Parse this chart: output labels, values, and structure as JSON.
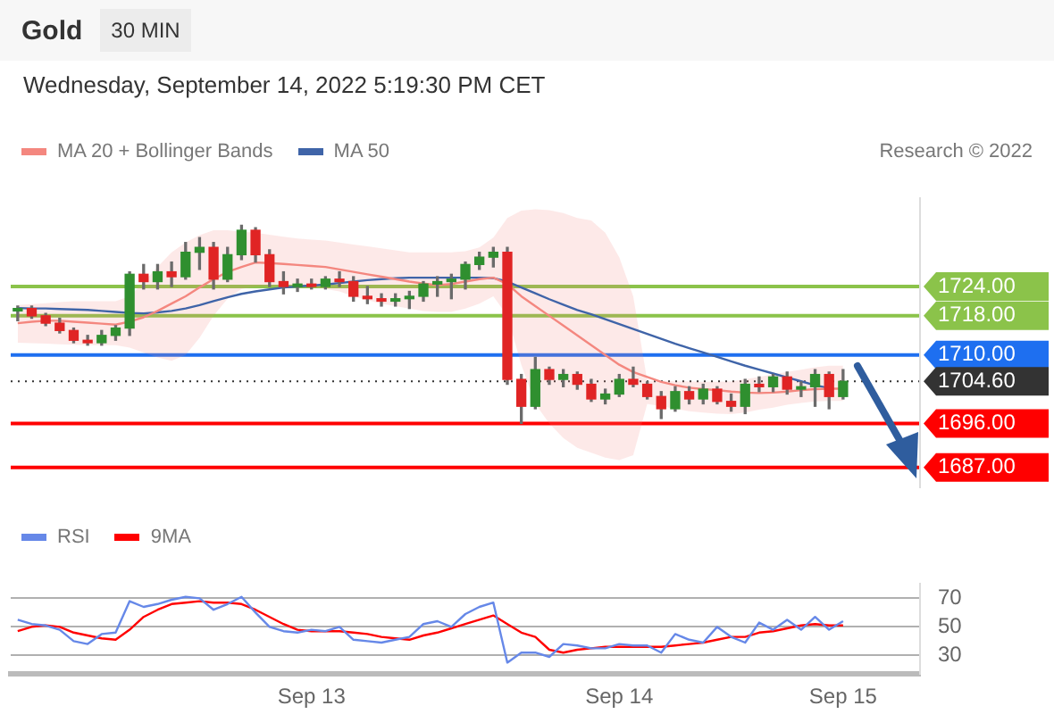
{
  "chart_data": [
    {
      "type": "candlestick",
      "title": "Gold",
      "subtitle": "Wednesday, September 14, 2022 5:19:30 PM CET",
      "annotations": [
        "30 MIN",
        "Research © 2022"
      ],
      "categories": [
        null,
        null,
        null,
        null,
        null,
        null,
        null,
        null,
        null,
        null,
        null,
        null,
        null,
        null,
        null,
        null,
        null,
        null,
        null,
        null,
        null,
        null,
        null,
        null,
        null,
        null,
        null,
        null,
        null,
        null,
        null,
        null,
        null,
        null,
        null,
        null,
        null,
        null,
        null,
        null,
        null,
        null,
        null,
        null,
        null,
        null,
        null,
        null,
        null,
        null,
        null,
        null,
        null,
        null,
        null,
        null,
        null,
        null,
        null,
        null,
        null,
        null,
        null,
        null,
        null
      ],
      "ohlc": [
        [
          1719,
          1720,
          1717,
          1719.5
        ],
        [
          1719.5,
          1720,
          1717.5,
          1718
        ],
        [
          1718,
          1718.5,
          1716,
          1716.5
        ],
        [
          1716.5,
          1717.5,
          1714.5,
          1715
        ],
        [
          1715,
          1715.5,
          1712.5,
          1713
        ],
        [
          1713,
          1714,
          1712,
          1712.5
        ],
        [
          1712.5,
          1715,
          1712,
          1714
        ],
        [
          1714,
          1716,
          1713,
          1715.5
        ],
        [
          1715.5,
          1727,
          1714,
          1726.5
        ],
        [
          1726.5,
          1728.5,
          1723.5,
          1725
        ],
        [
          1725,
          1728.5,
          1723.5,
          1727
        ],
        [
          1727,
          1729,
          1724,
          1726
        ],
        [
          1726,
          1733,
          1725.5,
          1731
        ],
        [
          1731,
          1734,
          1727.5,
          1732
        ],
        [
          1732,
          1733,
          1723.5,
          1725.5
        ],
        [
          1725.5,
          1732,
          1725,
          1730.5
        ],
        [
          1730.5,
          1736.5,
          1729.5,
          1735.5
        ],
        [
          1735.5,
          1736,
          1729,
          1730.5
        ],
        [
          1730.5,
          1731.5,
          1724,
          1725
        ],
        [
          1725,
          1727,
          1722.5,
          1724
        ],
        [
          1724,
          1725.5,
          1723,
          1724.5
        ],
        [
          1724.5,
          1725.5,
          1723.5,
          1724
        ],
        [
          1724,
          1726,
          1723.5,
          1725.5
        ],
        [
          1725.5,
          1727,
          1724,
          1725
        ],
        [
          1725,
          1726,
          1721,
          1722
        ],
        [
          1722,
          1724,
          1720.5,
          1721.5
        ],
        [
          1721.5,
          1722.5,
          1720,
          1721
        ],
        [
          1721,
          1722.5,
          1720,
          1721.5
        ],
        [
          1721.5,
          1723,
          1719.5,
          1722
        ],
        [
          1722,
          1725,
          1721,
          1724.5
        ],
        [
          1724.5,
          1726,
          1722,
          1725
        ],
        [
          1725,
          1726.5,
          1721.5,
          1725.5
        ],
        [
          1725.5,
          1729,
          1723.5,
          1728.5
        ],
        [
          1728.5,
          1731,
          1727.5,
          1730
        ],
        [
          1730,
          1732,
          1728,
          1731
        ],
        [
          1731,
          1732,
          1704,
          1705
        ],
        [
          1705,
          1706,
          1696,
          1699.5
        ],
        [
          1699.5,
          1709.5,
          1699,
          1707
        ],
        [
          1707,
          1707.5,
          1704,
          1705
        ],
        [
          1705,
          1707,
          1703.5,
          1706
        ],
        [
          1706,
          1706.5,
          1703,
          1704
        ],
        [
          1704,
          1705,
          1700.5,
          1701
        ],
        [
          1701,
          1703,
          1700,
          1702
        ],
        [
          1702,
          1706,
          1701.5,
          1705
        ],
        [
          1705,
          1707.5,
          1703.5,
          1704
        ],
        [
          1704,
          1704.5,
          1701,
          1701.5
        ],
        [
          1701.5,
          1702.5,
          1697,
          1699
        ],
        [
          1699,
          1703.5,
          1698.5,
          1702.5
        ],
        [
          1702.5,
          1703.5,
          1700,
          1701
        ],
        [
          1701,
          1704,
          1700,
          1703
        ],
        [
          1703,
          1703.5,
          1700,
          1700.5
        ],
        [
          1700.5,
          1702,
          1698.5,
          1699.5
        ],
        [
          1699.5,
          1705,
          1698,
          1704
        ],
        [
          1704,
          1705.5,
          1702.5,
          1703.5
        ],
        [
          1703.5,
          1706,
          1702.5,
          1705.5
        ],
        [
          1705.5,
          1706.5,
          1702,
          1703
        ],
        [
          1703,
          1704.5,
          1701.5,
          1703.5
        ],
        [
          1703.5,
          1707,
          1699.5,
          1706
        ],
        [
          1706,
          1706.5,
          1699,
          1701.5
        ],
        [
          1701.5,
          1707,
          1701,
          1704.6
        ],
        null,
        null,
        null,
        null,
        null
      ],
      "colors": [
        "#2f8f2f",
        "#e02424",
        "#e02424",
        "#e02424",
        "#e02424",
        "#e02424",
        "#2f8f2f",
        "#2f8f2f",
        "#2f8f2f",
        "#e02424",
        "#2f8f2f",
        "#e02424",
        "#2f8f2f",
        "#2f8f2f",
        "#e02424",
        "#2f8f2f",
        "#2f8f2f",
        "#e02424",
        "#e02424",
        "#e02424",
        "#2f8f2f",
        "#e02424",
        "#2f8f2f",
        "#e02424",
        "#e02424",
        "#e02424",
        "#e02424",
        "#2f8f2f",
        "#2f8f2f",
        "#2f8f2f",
        "#2f8f2f",
        "#2f8f2f",
        "#2f8f2f",
        "#2f8f2f",
        "#2f8f2f",
        "#e02424",
        "#e02424",
        "#2f8f2f",
        "#e02424",
        "#2f8f2f",
        "#e02424",
        "#e02424",
        "#2f8f2f",
        "#2f8f2f",
        "#e02424",
        "#e02424",
        "#e02424",
        "#2f8f2f",
        "#e02424",
        "#2f8f2f",
        "#e02424",
        "#e02424",
        "#2f8f2f",
        "#e02424",
        "#2f8f2f",
        "#e02424",
        "#2f8f2f",
        "#2f8f2f",
        "#e02424",
        "#2f8f2f",
        null,
        null,
        null,
        null,
        null
      ],
      "series": [
        {
          "name": "MA 20 + Bollinger Bands",
          "type": "line",
          "color": "#f4877f",
          "values": [
            1716.5,
            1716.8,
            1717,
            1717,
            1716.8,
            1716.6,
            1716.4,
            1716.2,
            1716.8,
            1717.7,
            1719,
            1720.5,
            1722,
            1723.8,
            1725.5,
            1727,
            1728,
            1728.9,
            1728.8,
            1728.6,
            1728.4,
            1728.2,
            1728,
            1727.5,
            1727,
            1726.5,
            1726,
            1725.5,
            1725,
            1724.6,
            1724.3,
            1724.5,
            1725,
            1725.5,
            1725.8,
            1724.5,
            1722,
            1720,
            1718,
            1716,
            1714,
            1712,
            1710,
            1708,
            1706.5,
            1705.5,
            1704.5,
            1703.8,
            1703.3,
            1703,
            1702.8,
            1702.5,
            1702.3,
            1702.2,
            1702.3,
            1702.5,
            1702.8,
            1703,
            1703.1,
            1703.1,
            null,
            null,
            null,
            null,
            null
          ],
          "upper": [
            1720.2,
            1720.4,
            1720.6,
            1720.8,
            1721,
            1721,
            1721,
            1721,
            1722,
            1724.9,
            1728,
            1731,
            1733,
            1734.5,
            1735.5,
            1735.5,
            1735.2,
            1735,
            1734.6,
            1734.2,
            1733.8,
            1733.6,
            1733.4,
            1733,
            1732.6,
            1732.2,
            1731.8,
            1731.4,
            1731,
            1731,
            1731,
            1731,
            1731.2,
            1732,
            1734,
            1738,
            1739.5,
            1739.8,
            1739.6,
            1739,
            1738,
            1737.5,
            1735,
            1730,
            1722,
            1704.7,
            1704.7,
            1704.6,
            1704.6,
            1704.5,
            1704.5,
            1704.6,
            1705,
            1705.5,
            1706,
            1706.5,
            1707,
            1707.5,
            1707.8,
            1707.8,
            null,
            null,
            null,
            null,
            null
          ],
          "lower": [
            1712.5,
            1712.4,
            1712.3,
            1712.2,
            1712.1,
            1712,
            1712,
            1712,
            1711.5,
            1710.5,
            1709.5,
            1708.8,
            1710,
            1713.5,
            1718,
            1721.5,
            1723.5,
            1724,
            1724,
            1724,
            1724,
            1724,
            1723.5,
            1723,
            1722,
            1721.2,
            1720.5,
            1720,
            1719.5,
            1719,
            1718.8,
            1718.8,
            1719.5,
            1720.5,
            1722,
            1718,
            1708,
            1700,
            1696,
            1693,
            1691,
            1690,
            1689,
            1688.5,
            1689.5,
            1700,
            1699.5,
            1699,
            1698.5,
            1698.2,
            1698,
            1697.9,
            1698.2,
            1698.8,
            1699.2,
            1699.8,
            1700.2,
            1700.5,
            1700.6,
            1700.6,
            null,
            null,
            null,
            null,
            null
          ]
        },
        {
          "name": "MA 50",
          "type": "line",
          "color": "#3f64a8",
          "values": [
            1719.6,
            1719.5,
            1719.5,
            1719.4,
            1719.3,
            1719.2,
            1719,
            1718.8,
            1718.6,
            1718.5,
            1718.7,
            1719,
            1719.5,
            1720.2,
            1721,
            1721.8,
            1722.5,
            1723,
            1723.4,
            1723.8,
            1724,
            1724.2,
            1724.4,
            1724.7,
            1725,
            1725.3,
            1725.5,
            1725.7,
            1725.8,
            1725.8,
            1725.8,
            1725.8,
            1725.8,
            1725.8,
            1725.7,
            1725,
            1723.8,
            1722.6,
            1721.4,
            1720.3,
            1719.2,
            1718.3,
            1717.3,
            1716.3,
            1715.3,
            1714.3,
            1713.3,
            1712.3,
            1711.4,
            1710.5,
            1709.6,
            1708.7,
            1707.8,
            1707,
            1706.2,
            1705.4,
            1704.6,
            1703.8,
            1703.2,
            null,
            null,
            null,
            null,
            null,
            null
          ]
        }
      ],
      "yticks": [
        {
          "value": 1687,
          "label": "1687.00"
        },
        {
          "value": 1696,
          "label": "1696.00"
        },
        {
          "value": 1704.6,
          "label": "1704.60"
        },
        {
          "value": 1710,
          "label": "1710.00"
        },
        {
          "value": 1718,
          "label": "1718.00"
        },
        {
          "value": 1724,
          "label": "1724.00"
        }
      ],
      "ylim": [
        1683,
        1742
      ],
      "tick_labels": "y",
      "legend": "top left",
      "marker": "none",
      "ref_lines": [
        {
          "axis": "y",
          "value": 1724,
          "color": "#8bc34a"
        },
        {
          "axis": "y",
          "value": 1718,
          "color": "#8bc34a"
        },
        {
          "axis": "y",
          "value": 1710,
          "color": "#1e6ff0"
        },
        {
          "axis": "y",
          "value": 1704.6,
          "color": "#333333",
          "line_style": "dotted"
        },
        {
          "axis": "y",
          "value": 1696,
          "color": "#ff0000"
        },
        {
          "axis": "y",
          "value": 1687,
          "color": "#ff0000"
        }
      ]
    },
    {
      "type": "line",
      "categories": [
        null,
        null,
        null,
        null,
        null,
        null,
        null,
        null,
        null,
        null,
        null,
        null,
        null,
        null,
        null,
        null,
        null,
        null,
        null,
        null,
        null,
        "Sep 13",
        null,
        null,
        null,
        null,
        null,
        null,
        null,
        null,
        null,
        null,
        null,
        null,
        null,
        null,
        null,
        null,
        null,
        null,
        null,
        null,
        null,
        "Sep 14",
        null,
        null,
        null,
        null,
        null,
        null,
        null,
        null,
        null,
        null,
        null,
        null,
        null,
        null,
        null,
        "Sep 15",
        null,
        null,
        null,
        null,
        null
      ],
      "series": [
        {
          "name": "RSI",
          "color": "#6688e8",
          "values": [
            55,
            52,
            51,
            48,
            40,
            38,
            45,
            46,
            68,
            64,
            66,
            69,
            71,
            70,
            62,
            66,
            71,
            60,
            50,
            47,
            46,
            48,
            47,
            50,
            41,
            40,
            39,
            41,
            43,
            52,
            54,
            50,
            59,
            64,
            67,
            25,
            32,
            32,
            29,
            38,
            37,
            35,
            35,
            38,
            37,
            37,
            32,
            45,
            41,
            39,
            50,
            43,
            39,
            53,
            48,
            55,
            48,
            57,
            48,
            54,
            null,
            null,
            null,
            null,
            null
          ]
        },
        {
          "name": "9MA",
          "color": "#ff0000",
          "values": [
            47,
            50,
            51,
            50,
            46,
            44,
            42,
            41,
            48,
            57,
            62,
            66,
            67,
            68,
            67,
            67,
            66,
            62,
            57,
            52,
            48,
            47,
            47,
            47,
            46,
            45,
            43,
            42,
            41,
            44,
            46,
            49,
            52,
            55,
            58,
            52,
            46,
            43,
            34,
            32,
            34,
            35,
            36,
            36,
            36,
            36,
            36,
            37,
            38,
            39,
            41,
            43,
            43,
            46,
            47,
            49,
            51,
            52,
            51,
            51,
            null,
            null,
            null,
            null,
            null
          ]
        }
      ],
      "ylim": [
        17,
        80
      ],
      "yticks": [
        30,
        50,
        70
      ],
      "grid": "y",
      "legend": "top left",
      "marker": "none"
    }
  ]
}
